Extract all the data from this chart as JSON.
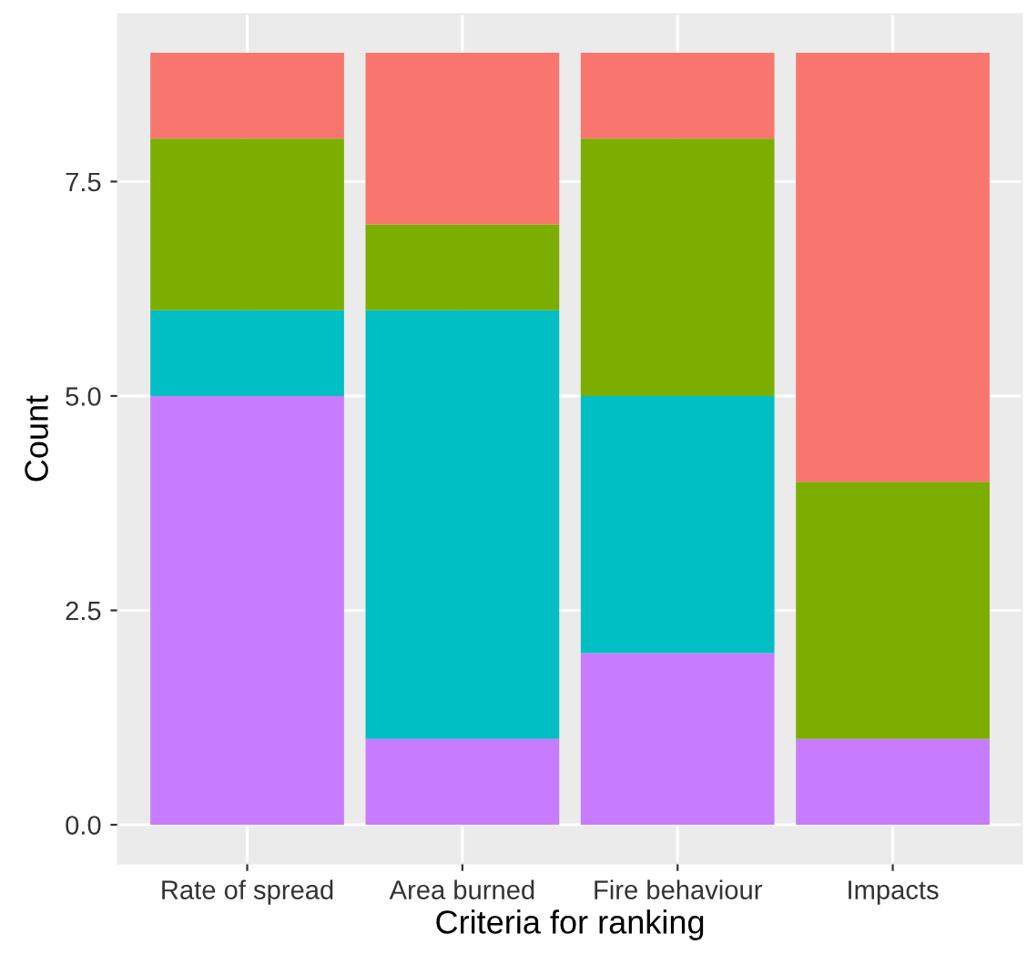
{
  "chart_data": {
    "type": "bar",
    "stacked": true,
    "xlabel": "Criteria for ranking",
    "ylabel": "Count",
    "categories": [
      "Rate of spread",
      "Area burned",
      "Fire behaviour",
      "Impacts"
    ],
    "series": [
      {
        "color": "#c77cff",
        "values": [
          5,
          1,
          2,
          1
        ]
      },
      {
        "color": "#00bfc4",
        "values": [
          1,
          5,
          3,
          0
        ]
      },
      {
        "color": "#7cae00",
        "values": [
          2,
          1,
          3,
          3
        ]
      },
      {
        "color": "#f8766d",
        "values": [
          1,
          2,
          1,
          5
        ]
      }
    ],
    "ylim": [
      -0.45,
      9.45
    ],
    "yticks": [
      {
        "value": 0,
        "label": "0.0"
      },
      {
        "value": 2.5,
        "label": "2.5"
      },
      {
        "value": 5,
        "label": "5.0"
      },
      {
        "value": 7.5,
        "label": "7.5"
      }
    ],
    "grid": true
  }
}
